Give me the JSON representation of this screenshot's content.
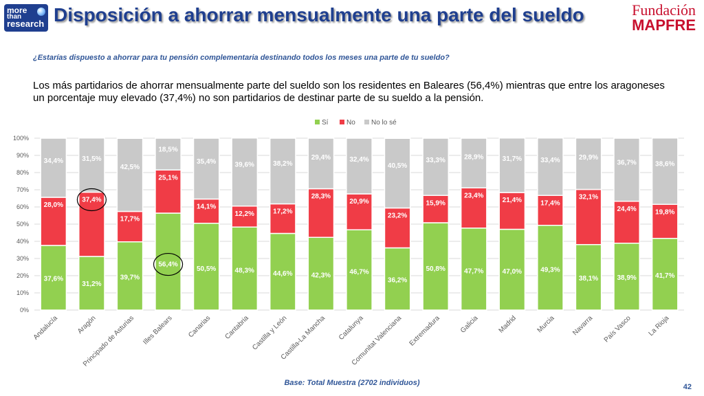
{
  "header": {
    "logo_lines": [
      "more",
      "than",
      "research"
    ],
    "title": "Disposición a ahorrar mensualmente una parte del sueldo",
    "brand_line1": "Fundación",
    "brand_line2": "MAPFRE"
  },
  "question": "¿Estarías dispuesto a ahorrar para tu pensión complementaria destinando todos los meses una parte de tu sueldo?",
  "summary": "Los más partidarios de ahorrar mensualmente parte del sueldo son los residentes en Baleares (56,4%) mientras que entre los aragoneses un porcentaje muy elevado (37,4%) no son partidarios de destinar parte de su sueldo a la pensión.",
  "footer": "Base: Total Muestra (2702 individuos)",
  "page_number": "42",
  "chart_data": {
    "type": "bar",
    "stacked": true,
    "categories": [
      "Andalucía",
      "Aragón",
      "Principado de Asturias",
      "Illes Balears",
      "Canarias",
      "Cantabria",
      "Castilla y León",
      "Castilla-La Mancha",
      "Catalunya",
      "Comunitat Valenciana",
      "Extremadura",
      "Galicia",
      "Madrid",
      "Murcia",
      "Navarra",
      "País Vasco",
      "La Rioja"
    ],
    "series": [
      {
        "name": "Sí",
        "color": "#92d050",
        "values": [
          37.6,
          31.2,
          39.7,
          56.4,
          50.5,
          48.3,
          44.6,
          42.3,
          46.7,
          36.2,
          50.8,
          47.7,
          47.0,
          49.3,
          38.1,
          38.9,
          41.7
        ]
      },
      {
        "name": "No",
        "color": "#f03c46",
        "values": [
          28.0,
          37.4,
          17.7,
          25.1,
          14.1,
          12.2,
          17.2,
          28.3,
          20.9,
          23.2,
          15.9,
          23.4,
          21.4,
          17.4,
          32.1,
          24.4,
          19.8
        ]
      },
      {
        "name": "No lo sé",
        "color": "#c9c9c9",
        "values": [
          34.4,
          31.5,
          42.5,
          18.5,
          35.4,
          39.6,
          38.2,
          29.4,
          32.4,
          40.5,
          33.3,
          28.9,
          31.7,
          33.4,
          29.9,
          36.7,
          38.6
        ]
      }
    ],
    "value_labels": [
      [
        "37,6%",
        "31,2%",
        "39,7%",
        "56,4%",
        "50,5%",
        "48,3%",
        "44,6%",
        "42,3%",
        "46,7%",
        "36,2%",
        "50,8%",
        "47,7%",
        "47,0%",
        "49,3%",
        "38,1%",
        "38,9%",
        "41,7%"
      ],
      [
        "28,0%",
        "37,4%",
        "17,7%",
        "25,1%",
        "14,1%",
        "12,2%",
        "17,2%",
        "28,3%",
        "20,9%",
        "23,2%",
        "15,9%",
        "23,4%",
        "21,4%",
        "17,4%",
        "32,1%",
        "24,4%",
        "19,8%"
      ],
      [
        "34,4%",
        "31,5%",
        "42,5%",
        "18,5%",
        "35,4%",
        "39,6%",
        "38,2%",
        "29,4%",
        "32,4%",
        "40,5%",
        "33,3%",
        "28,9%",
        "31,7%",
        "33,4%",
        "29,9%",
        "36,7%",
        "38,6%"
      ]
    ],
    "y_ticks": [
      "0%",
      "10%",
      "20%",
      "30%",
      "40%",
      "50%",
      "60%",
      "70%",
      "80%",
      "90%",
      "100%"
    ],
    "ylim": [
      0,
      100
    ],
    "grid": true,
    "legend_position": "top",
    "highlighted": [
      {
        "series": 1,
        "category": 1
      },
      {
        "series": 0,
        "category": 3
      }
    ]
  }
}
